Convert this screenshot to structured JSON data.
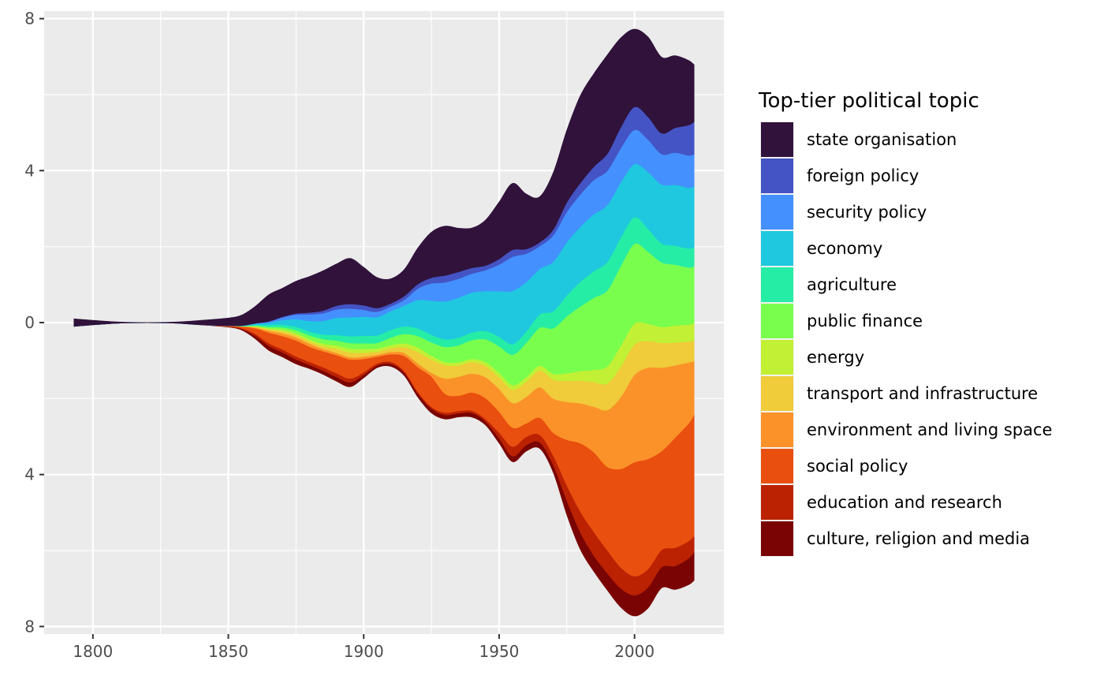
{
  "chart_data": {
    "type": "area",
    "subtype": "streamgraph",
    "title": "",
    "xlabel": "",
    "ylabel": "",
    "xlim": [
      1782,
      2033
    ],
    "ylim": [
      -8.2,
      8.2
    ],
    "x_ticks": [
      1800,
      1850,
      1900,
      1950,
      2000
    ],
    "y_ticks": [
      {
        "value": 8,
        "label": "8"
      },
      {
        "value": 4,
        "label": "4"
      },
      {
        "value": 0,
        "label": "0"
      },
      {
        "value": -4,
        "label": "4"
      },
      {
        "value": -8,
        "label": "8"
      }
    ],
    "grid": true,
    "background": "#ebebeb",
    "x": [
      1793,
      1800,
      1810,
      1820,
      1830,
      1840,
      1850,
      1855,
      1860,
      1865,
      1870,
      1875,
      1880,
      1885,
      1890,
      1895,
      1900,
      1905,
      1910,
      1915,
      1920,
      1925,
      1930,
      1935,
      1940,
      1945,
      1950,
      1955,
      1960,
      1965,
      1970,
      1975,
      1980,
      1985,
      1990,
      1995,
      2000,
      2005,
      2010,
      2015,
      2020,
      2022
    ],
    "legend": {
      "title": "Top-tier political topic",
      "position": "right"
    },
    "series": [
      {
        "name": "culture, religion and media",
        "color": "#7a0403",
        "values": [
          0,
          0,
          0,
          0,
          0,
          0,
          0.01,
          0.03,
          0.08,
          0.12,
          0.12,
          0.12,
          0.1,
          0.1,
          0.11,
          0.12,
          0.08,
          0.06,
          0.07,
          0.08,
          0.1,
          0.12,
          0.11,
          0.1,
          0.11,
          0.1,
          0.13,
          0.15,
          0.16,
          0.16,
          0.2,
          0.38,
          0.45,
          0.42,
          0.45,
          0.5,
          0.55,
          0.55,
          0.55,
          0.62,
          0.7,
          0.75
        ]
      },
      {
        "name": "education and research",
        "color": "#bb2202",
        "values": [
          0,
          0,
          0,
          0,
          0,
          0,
          0.01,
          0.02,
          0.05,
          0.07,
          0.08,
          0.08,
          0.08,
          0.09,
          0.1,
          0.1,
          0.07,
          0.05,
          0.05,
          0.04,
          0.04,
          0.04,
          0.06,
          0.06,
          0.06,
          0.06,
          0.15,
          0.25,
          0.22,
          0.2,
          0.25,
          0.4,
          0.55,
          0.62,
          0.6,
          0.55,
          0.5,
          0.48,
          0.45,
          0.48,
          0.45,
          0.42
        ]
      },
      {
        "name": "social policy",
        "color": "#e94f0e",
        "values": [
          0,
          0,
          0,
          0,
          0,
          0,
          0.02,
          0.05,
          0.15,
          0.28,
          0.35,
          0.42,
          0.4,
          0.42,
          0.48,
          0.5,
          0.35,
          0.18,
          0.2,
          0.4,
          0.65,
          0.8,
          0.5,
          0.4,
          0.48,
          0.55,
          0.55,
          0.5,
          0.35,
          0.45,
          0.6,
          1.2,
          1.8,
          2.1,
          2.2,
          2.6,
          3.0,
          2.9,
          2.6,
          2.9,
          3.1,
          3.2
        ]
      },
      {
        "name": "environment and living space",
        "color": "#fb9229",
        "values": [
          0,
          0,
          0,
          0,
          0,
          0,
          0,
          0,
          0.02,
          0.05,
          0.07,
          0.08,
          0.08,
          0.06,
          0.06,
          0.06,
          0.06,
          0.05,
          0.06,
          0.08,
          0.1,
          0.1,
          0.4,
          0.5,
          0.5,
          0.55,
          0.6,
          0.65,
          0.7,
          0.8,
          0.9,
          1.0,
          1.05,
          1.2,
          1.5,
          1.9,
          2.3,
          2.4,
          2.2,
          1.9,
          1.6,
          1.4
        ]
      },
      {
        "name": "transport and infrastructure",
        "color": "#f0cb3a",
        "values": [
          0,
          0,
          0,
          0,
          0,
          0,
          0,
          0,
          0.02,
          0.04,
          0.06,
          0.06,
          0.06,
          0.07,
          0.1,
          0.12,
          0.1,
          0.08,
          0.1,
          0.15,
          0.3,
          0.35,
          0.35,
          0.3,
          0.3,
          0.3,
          0.3,
          0.35,
          0.4,
          0.45,
          0.5,
          0.55,
          0.6,
          0.65,
          0.7,
          0.8,
          0.8,
          0.7,
          0.65,
          0.6,
          0.55,
          0.55
        ]
      },
      {
        "name": "energy",
        "color": "#c2f034",
        "values": [
          0,
          0,
          0,
          0,
          0,
          0,
          0,
          0,
          0.01,
          0.02,
          0.04,
          0.05,
          0.06,
          0.07,
          0.09,
          0.1,
          0.1,
          0.08,
          0.08,
          0.1,
          0.12,
          0.1,
          0.08,
          0.08,
          0.08,
          0.1,
          0.12,
          0.12,
          0.12,
          0.12,
          0.15,
          0.2,
          0.25,
          0.32,
          0.45,
          0.55,
          0.55,
          0.45,
          0.42,
          0.45,
          0.45,
          0.45
        ]
      },
      {
        "name": "public finance",
        "color": "#7afe4e",
        "values": [
          0,
          0,
          0,
          0,
          0,
          0,
          0,
          0.01,
          0.02,
          0.04,
          0.06,
          0.08,
          0.1,
          0.12,
          0.13,
          0.15,
          0.15,
          0.15,
          0.2,
          0.25,
          0.3,
          0.35,
          0.4,
          0.45,
          0.5,
          0.6,
          0.7,
          0.8,
          0.9,
          1.0,
          1.2,
          1.5,
          1.7,
          1.9,
          2.0,
          2.1,
          2.1,
          1.9,
          1.7,
          1.6,
          1.5,
          1.5
        ]
      },
      {
        "name": "agriculture",
        "color": "#26eda6",
        "values": [
          0,
          0,
          0,
          0,
          0,
          0,
          0,
          0,
          0.02,
          0.05,
          0.07,
          0.09,
          0.1,
          0.12,
          0.15,
          0.18,
          0.2,
          0.2,
          0.2,
          0.2,
          0.2,
          0.2,
          0.2,
          0.2,
          0.2,
          0.22,
          0.25,
          0.28,
          0.3,
          0.35,
          0.45,
          0.55,
          0.65,
          0.7,
          0.75,
          0.75,
          0.7,
          0.6,
          0.5,
          0.5,
          0.5,
          0.5
        ]
      },
      {
        "name": "economy",
        "color": "#1fc8de",
        "values": [
          0,
          0,
          0,
          0,
          0,
          0,
          0,
          0.01,
          0.03,
          0.06,
          0.12,
          0.2,
          0.28,
          0.36,
          0.45,
          0.5,
          0.5,
          0.48,
          0.5,
          0.55,
          0.75,
          0.9,
          1.0,
          1.05,
          1.05,
          1.05,
          1.2,
          1.4,
          1.3,
          1.2,
          1.3,
          1.4,
          1.45,
          1.5,
          1.5,
          1.45,
          1.4,
          1.5,
          1.55,
          1.6,
          1.6,
          1.6
        ]
      },
      {
        "name": "security policy",
        "color": "#4490fe",
        "values": [
          0,
          0,
          0,
          0,
          0,
          0,
          0,
          0,
          0.01,
          0.03,
          0.07,
          0.12,
          0.17,
          0.2,
          0.22,
          0.23,
          0.18,
          0.14,
          0.12,
          0.15,
          0.3,
          0.45,
          0.5,
          0.5,
          0.5,
          0.55,
          0.7,
          0.9,
          0.75,
          0.6,
          0.7,
          0.8,
          0.85,
          0.9,
          0.9,
          0.9,
          0.9,
          0.85,
          0.8,
          0.85,
          0.85,
          0.85
        ]
      },
      {
        "name": "foreign policy",
        "color": "#4454c4",
        "values": [
          0,
          0,
          0,
          0,
          0,
          0,
          0,
          0,
          0,
          0.01,
          0.02,
          0.03,
          0.05,
          0.07,
          0.1,
          0.12,
          0.12,
          0.1,
          0.08,
          0.1,
          0.12,
          0.15,
          0.18,
          0.18,
          0.15,
          0.12,
          0.15,
          0.18,
          0.12,
          0.1,
          0.15,
          0.25,
          0.3,
          0.35,
          0.45,
          0.55,
          0.6,
          0.6,
          0.55,
          0.65,
          0.8,
          0.85
        ]
      },
      {
        "name": "state organisation",
        "color": "#30123b",
        "values": [
          0.2,
          0.12,
          0.03,
          0.01,
          0.03,
          0.12,
          0.2,
          0.28,
          0.45,
          0.7,
          0.75,
          0.85,
          0.95,
          1.05,
          1.1,
          1.2,
          1.0,
          0.8,
          0.65,
          0.7,
          0.95,
          1.2,
          1.3,
          1.15,
          1.05,
          1.2,
          1.5,
          1.75,
          1.45,
          1.2,
          1.5,
          1.9,
          2.3,
          2.45,
          2.6,
          2.35,
          2.05,
          2.1,
          2.0,
          1.9,
          1.7,
          1.5
        ]
      }
    ]
  }
}
